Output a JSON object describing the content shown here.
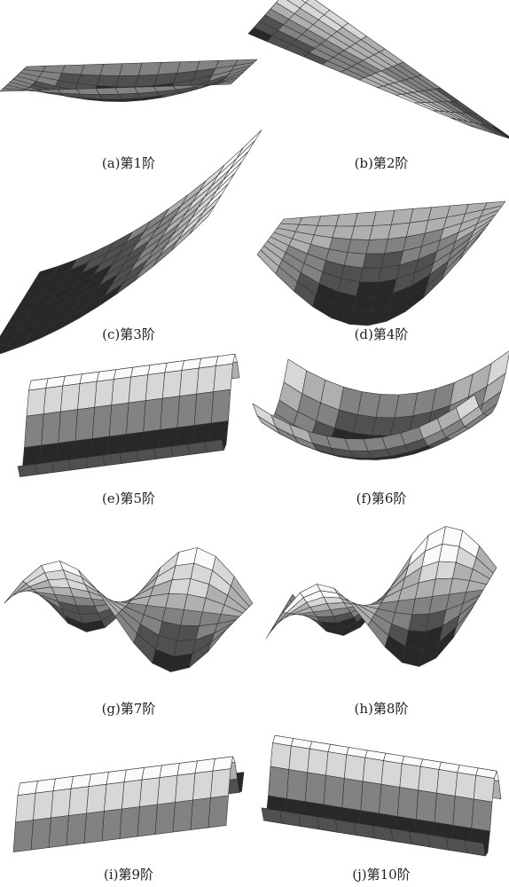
{
  "captions": [
    "(a)第1阶",
    "(b)第2阶",
    "(c)第3阶",
    "(d)第4阶",
    "(e)第5阶",
    "(f)第6阶",
    "(g)第7阶",
    "(h)第8阶",
    "(i)第9阶",
    "(j)第10阶"
  ]
}
